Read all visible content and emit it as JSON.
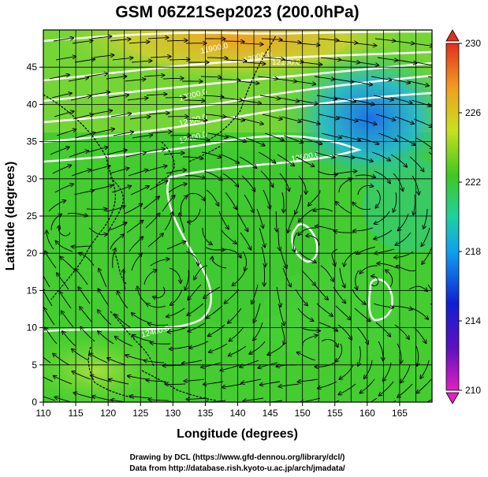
{
  "title": "GSM 06Z21Sep2023 (200.0hPa)",
  "x_axis_label": "Longitude (degrees)",
  "y_axis_label": "Latitude  (degrees)",
  "x_ticks": [
    "110",
    "115",
    "120",
    "125",
    "130",
    "135",
    "140",
    "145",
    "150",
    "155",
    "160",
    "165"
  ],
  "y_ticks": [
    "0",
    "5",
    "10",
    "15",
    "20",
    "25",
    "30",
    "35",
    "40",
    "45"
  ],
  "colorbar_ticks": [
    "210",
    "214",
    "218",
    "222",
    "226",
    "230"
  ],
  "credit_line_1": "Drawing by DCL (https://www.gfd-dennou.org/library/dcl/)",
  "credit_line_2": "Data from http://database.rish.kyoto-u.ac.jp/arch/jmadata/",
  "contour_labels": [
    "11900.0",
    "12000.0",
    "12100.0",
    "12200.0",
    "12300.0",
    "12400.0",
    "12500.0",
    "12400.0"
  ],
  "colors": {
    "warm": "#e8a020",
    "mid": "#3fcf2a",
    "cool": "#22c0c8",
    "cold": "#1a60e0",
    "contour": "#ffffff",
    "streamline": "#000000",
    "coastline": "#000000"
  }
}
